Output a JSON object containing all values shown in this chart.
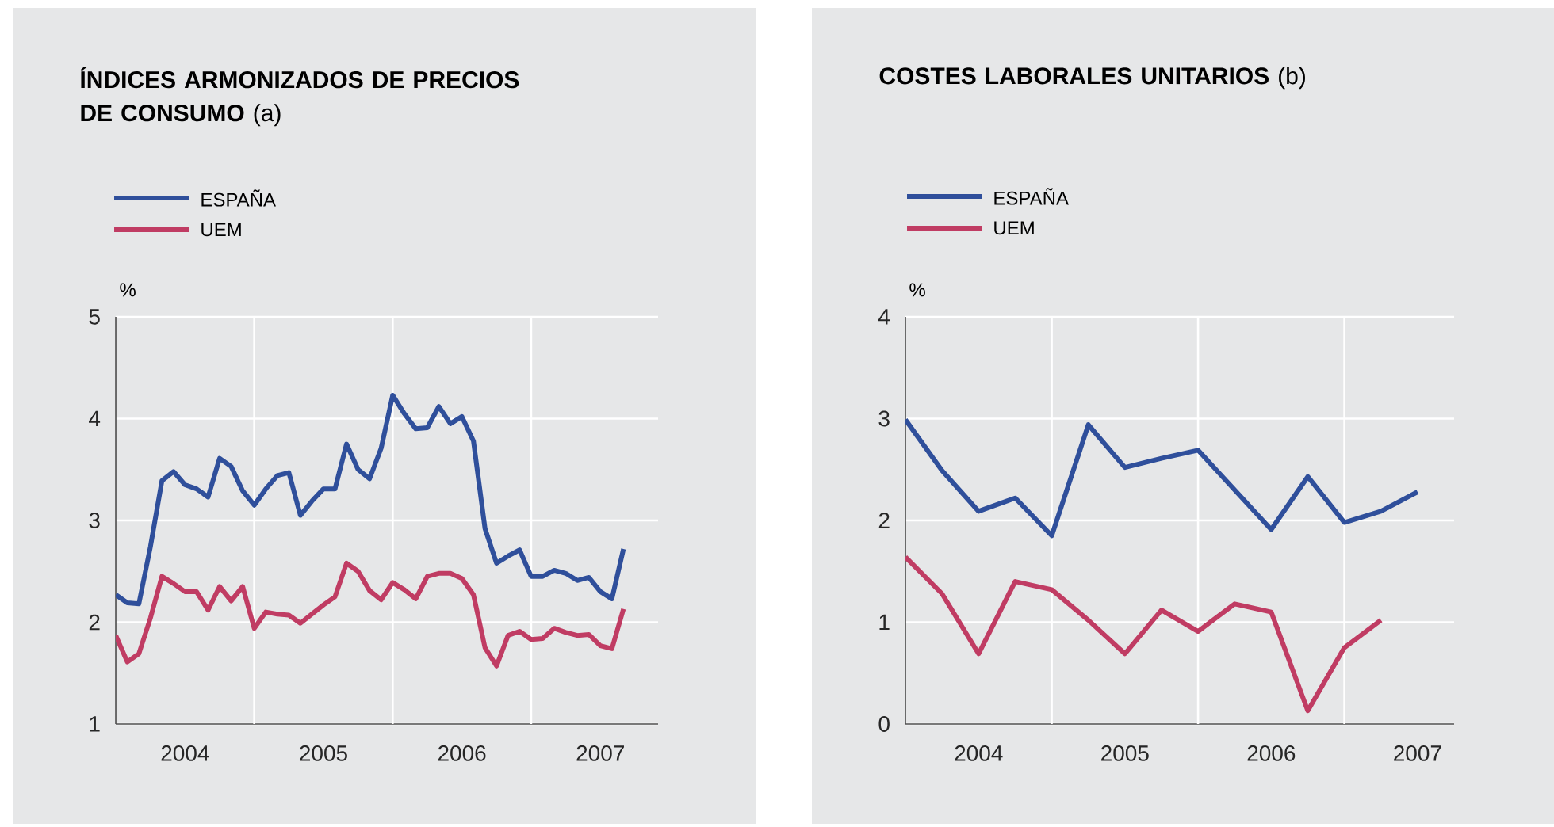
{
  "chart_data": [
    {
      "type": "line",
      "title": "**ÍNDICES ARMONIZADOS DE PRECIOS DE CONSUMO** (a)",
      "ylabel": "%",
      "x": [
        "2004-01",
        "2004-02",
        "2004-03",
        "2004-04",
        "2004-05",
        "2004-06",
        "2004-07",
        "2004-08",
        "2004-09",
        "2004-10",
        "2004-11",
        "2004-12",
        "2005-01",
        "2005-02",
        "2005-03",
        "2005-04",
        "2005-05",
        "2005-06",
        "2005-07",
        "2005-08",
        "2005-09",
        "2005-10",
        "2005-11",
        "2005-12",
        "2006-01",
        "2006-02",
        "2006-03",
        "2006-04",
        "2006-05",
        "2006-06",
        "2006-07",
        "2006-08",
        "2006-09",
        "2006-10",
        "2006-11",
        "2006-12",
        "2007-01",
        "2007-02",
        "2007-03",
        "2007-04",
        "2007-05",
        "2007-06",
        "2007-07",
        "2007-08",
        "2007-09"
      ],
      "series": [
        {
          "name": "ESPAÑA",
          "color": "#2f4f9b",
          "values": [
            2.27,
            2.19,
            2.18,
            2.74,
            3.39,
            3.48,
            3.35,
            3.31,
            3.23,
            3.61,
            3.53,
            3.29,
            3.15,
            3.31,
            3.44,
            3.47,
            3.05,
            3.19,
            3.31,
            3.31,
            3.75,
            3.5,
            3.41,
            3.71,
            4.23,
            4.05,
            3.9,
            3.91,
            4.12,
            3.95,
            4.02,
            3.78,
            2.92,
            2.58,
            2.65,
            2.71,
            2.45,
            2.45,
            2.51,
            2.48,
            2.41,
            2.44,
            2.3,
            2.23,
            2.72
          ]
        },
        {
          "name": "UEM",
          "color": "#c03c63",
          "values": [
            1.87,
            1.61,
            1.69,
            2.04,
            2.45,
            2.38,
            2.3,
            2.3,
            2.12,
            2.35,
            2.21,
            2.35,
            1.94,
            2.1,
            2.08,
            2.07,
            1.99,
            2.08,
            2.17,
            2.25,
            2.58,
            2.5,
            2.31,
            2.22,
            2.39,
            2.32,
            2.23,
            2.45,
            2.48,
            2.48,
            2.43,
            2.27,
            1.75,
            1.57,
            1.87,
            1.91,
            1.83,
            1.84,
            1.94,
            1.9,
            1.87,
            1.88,
            1.77,
            1.74,
            2.13
          ]
        }
      ],
      "xlim": [
        "2004-01",
        "2007-12"
      ],
      "ylim": [
        1,
        5
      ],
      "yticks": [
        1,
        2,
        3,
        4,
        5
      ],
      "xticks": [
        {
          "value": "2004-07",
          "label": "2004"
        },
        {
          "value": "2005-01",
          "label": null
        },
        {
          "value": "2005-07",
          "label": "2005"
        },
        {
          "value": "2006-01",
          "label": null
        },
        {
          "value": "2006-07",
          "label": "2006"
        },
        {
          "value": "2007-01",
          "label": null
        },
        {
          "value": "2007-07",
          "label": "2007"
        }
      ],
      "grid": true,
      "legend": "top left"
    },
    {
      "type": "line",
      "title": "**COSTES LABORALES UNITARIOS** (b)",
      "ylabel": "%",
      "x": [
        "2004-01",
        "2004-04",
        "2004-07",
        "2004-10",
        "2005-01",
        "2005-04",
        "2005-07",
        "2005-10",
        "2006-01",
        "2006-04",
        "2006-07",
        "2006-10",
        "2007-01",
        "2007-04",
        "2007-07"
      ],
      "series": [
        {
          "name": "ESPAÑA",
          "color": "#2f4f9b",
          "values": [
            2.99,
            2.49,
            2.09,
            2.22,
            1.85,
            2.94,
            2.52,
            2.61,
            2.69,
            2.3,
            1.91,
            2.43,
            1.98,
            2.09,
            2.28
          ]
        },
        {
          "name": "UEM",
          "color": "#c03c63",
          "values": [
            1.64,
            1.28,
            0.69,
            1.4,
            1.32,
            1.02,
            0.69,
            1.12,
            0.91,
            1.18,
            1.1,
            0.13,
            0.75,
            1.02,
            null
          ]
        }
      ],
      "xlim": [
        "2004-01",
        "2007-10"
      ],
      "ylim": [
        0,
        4
      ],
      "yticks": [
        0,
        1,
        2,
        3,
        4
      ],
      "xticks": [
        {
          "value": "2004-07",
          "label": "2004"
        },
        {
          "value": "2005-01",
          "label": null
        },
        {
          "value": "2005-07",
          "label": "2005"
        },
        {
          "value": "2006-01",
          "label": null
        },
        {
          "value": "2006-07",
          "label": "2006"
        },
        {
          "value": "2007-01",
          "label": null
        },
        {
          "value": "2007-07",
          "label": "2007"
        }
      ],
      "grid": true,
      "legend": "top left"
    }
  ]
}
